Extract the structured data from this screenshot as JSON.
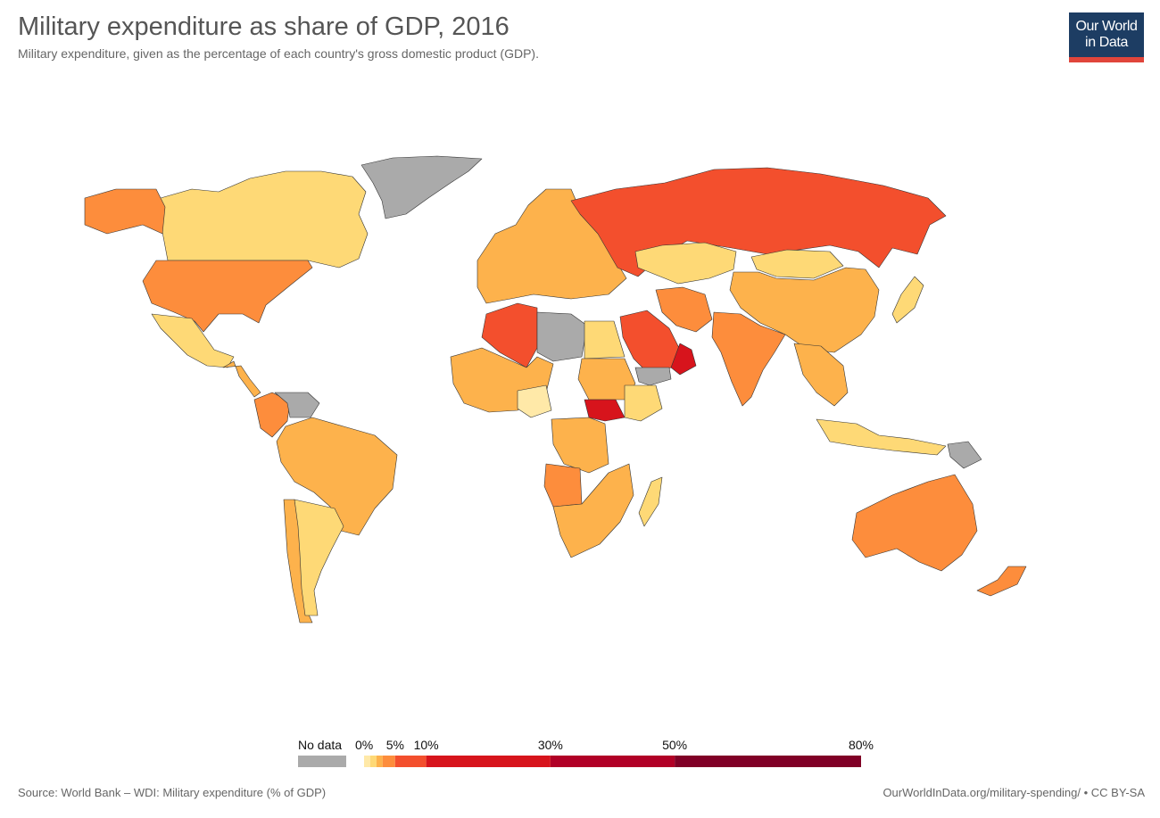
{
  "header": {
    "title": "Military expenditure as share of GDP, 2016",
    "subtitle": "Military expenditure, given as the percentage of each country's gross domestic product (GDP)."
  },
  "logo": {
    "line1": "Our World",
    "line2": "in Data"
  },
  "legend": {
    "no_data_label": "No data",
    "no_data_color": "#aaaaaa",
    "ticks": [
      {
        "label": "0%",
        "value": 0
      },
      {
        "label": "5%",
        "value": 5
      },
      {
        "label": "10%",
        "value": 10
      },
      {
        "label": "30%",
        "value": 30
      },
      {
        "label": "50%",
        "value": 50
      },
      {
        "label": "80%",
        "value": 80
      }
    ],
    "bins": [
      {
        "from": 0,
        "to": 1,
        "color": "#ffe9a8"
      },
      {
        "from": 1,
        "to": 2,
        "color": "#fed976"
      },
      {
        "from": 2,
        "to": 3,
        "color": "#fdb24c"
      },
      {
        "from": 3,
        "to": 5,
        "color": "#fd8d3c"
      },
      {
        "from": 5,
        "to": 10,
        "color": "#f34f2d"
      },
      {
        "from": 10,
        "to": 30,
        "color": "#d7141c"
      },
      {
        "from": 30,
        "to": 50,
        "color": "#b10026"
      },
      {
        "from": 50,
        "to": 80,
        "color": "#800026"
      }
    ]
  },
  "map": {
    "ocean_color": "#ffffff",
    "border_color": "#333333",
    "regions": [
      {
        "name": "Greenland",
        "color": "#aaaaaa"
      },
      {
        "name": "Canada",
        "color": "#fed976"
      },
      {
        "name": "Alaska",
        "color": "#fd8d3c"
      },
      {
        "name": "United States",
        "color": "#fd8d3c"
      },
      {
        "name": "Mexico",
        "color": "#fed976"
      },
      {
        "name": "Central America",
        "color": "#fdb24c"
      },
      {
        "name": "Colombia",
        "color": "#fd8d3c"
      },
      {
        "name": "Venezuela",
        "color": "#aaaaaa"
      },
      {
        "name": "Brazil",
        "color": "#fdb24c"
      },
      {
        "name": "Argentina",
        "color": "#fed976"
      },
      {
        "name": "Chile",
        "color": "#fdb24c"
      },
      {
        "name": "Europe",
        "color": "#fdb24c"
      },
      {
        "name": "Russia",
        "color": "#f34f2d"
      },
      {
        "name": "Kazakhstan",
        "color": "#fed976"
      },
      {
        "name": "Mongolia",
        "color": "#fed976"
      },
      {
        "name": "China",
        "color": "#fdb24c"
      },
      {
        "name": "India",
        "color": "#fd8d3c"
      },
      {
        "name": "Iran",
        "color": "#fd8d3c"
      },
      {
        "name": "Saudi Arabia",
        "color": "#f34f2d"
      },
      {
        "name": "Oman",
        "color": "#d7141c"
      },
      {
        "name": "Yemen",
        "color": "#aaaaaa"
      },
      {
        "name": "Algeria",
        "color": "#f34f2d"
      },
      {
        "name": "Libya",
        "color": "#aaaaaa"
      },
      {
        "name": "Egypt",
        "color": "#fed976"
      },
      {
        "name": "Sudan",
        "color": "#fdb24c"
      },
      {
        "name": "South Sudan",
        "color": "#d7141c"
      },
      {
        "name": "Nigeria",
        "color": "#ffe9a8"
      },
      {
        "name": "Ethiopia",
        "color": "#fed976"
      },
      {
        "name": "DR Congo",
        "color": "#fdb24c"
      },
      {
        "name": "Angola",
        "color": "#fd8d3c"
      },
      {
        "name": "Southern Africa",
        "color": "#fdb24c"
      },
      {
        "name": "Madagascar",
        "color": "#fed976"
      },
      {
        "name": "Southeast Asia",
        "color": "#fdb24c"
      },
      {
        "name": "Indonesia",
        "color": "#fed976"
      },
      {
        "name": "Papua New Guinea",
        "color": "#aaaaaa"
      },
      {
        "name": "Japan",
        "color": "#fed976"
      },
      {
        "name": "Australia",
        "color": "#fd8d3c"
      },
      {
        "name": "New Zealand",
        "color": "#fd8d3c"
      }
    ]
  },
  "footer": {
    "source": "Source: World Bank – WDI: Military expenditure (% of GDP)",
    "url": "OurWorldInData.org/military-spending/ • CC BY-SA"
  }
}
